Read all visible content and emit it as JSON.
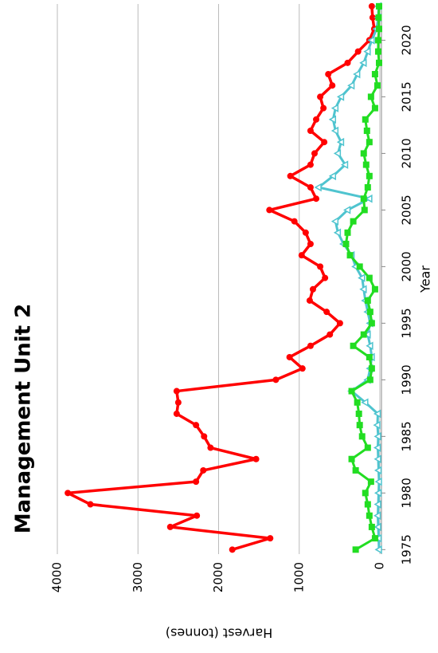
{
  "chart_data": {
    "type": "line",
    "title": "Management Unit 2",
    "x_label": "Year",
    "y_label": "Harvest (tonnes)",
    "x": [
      1975,
      1976,
      1977,
      1978,
      1979,
      1980,
      1981,
      1982,
      1983,
      1984,
      1985,
      1986,
      1987,
      1988,
      1989,
      1990,
      1991,
      1992,
      1993,
      1994,
      1995,
      1996,
      1997,
      1998,
      1999,
      2000,
      2001,
      2002,
      2003,
      2004,
      2005,
      2006,
      2007,
      2008,
      2009,
      2010,
      2011,
      2012,
      2013,
      2014,
      2015,
      2016,
      2017,
      2018,
      2019,
      2020,
      2021,
      2022,
      2023
    ],
    "series": [
      {
        "color": "#ff0000",
        "marker": "circle",
        "values": [
          1830,
          1360,
          2600,
          2270,
          3590,
          3870,
          2280,
          2190,
          1535,
          2100,
          2180,
          2280,
          2520,
          2500,
          2520,
          1290,
          960,
          1120,
          860,
          620,
          495,
          660,
          870,
          830,
          680,
          740,
          970,
          860,
          920,
          1060,
          1370,
          790,
          860,
          1110,
          860,
          810,
          690,
          860,
          790,
          700,
          740,
          590,
          640,
          400,
          270,
          130,
          70,
          90,
          100
        ]
      },
      {
        "color": "#4fc4cf",
        "marker": "triangle",
        "values": [
          10,
          15,
          20,
          25,
          20,
          15,
          10,
          15,
          20,
          25,
          20,
          30,
          25,
          180,
          350,
          150,
          120,
          100,
          120,
          150,
          120,
          150,
          180,
          200,
          220,
          300,
          350,
          450,
          520,
          550,
          400,
          130,
          760,
          580,
          430,
          520,
          480,
          550,
          580,
          550,
          480,
          350,
          280,
          200,
          150,
          100,
          40,
          20,
          15
        ]
      },
      {
        "color": "#22dd22",
        "marker": "square",
        "values": [
          300,
          60,
          100,
          130,
          150,
          180,
          110,
          300,
          350,
          150,
          220,
          250,
          260,
          280,
          350,
          120,
          100,
          130,
          330,
          200,
          100,
          120,
          150,
          60,
          130,
          250,
          370,
          420,
          400,
          330,
          190,
          200,
          150,
          130,
          170,
          200,
          130,
          160,
          180,
          60,
          110,
          30,
          60,
          10,
          20,
          20,
          10,
          15,
          10
        ]
      }
    ],
    "xlim": [
      1974.6,
      2023.2
    ],
    "xticks": [
      1975,
      1980,
      1985,
      1990,
      1995,
      2000,
      2005,
      2010,
      2015,
      2020
    ],
    "ylim": [
      0,
      4000
    ],
    "yticks": [
      0,
      1000,
      2000,
      3000,
      4000
    ],
    "grid": true
  }
}
